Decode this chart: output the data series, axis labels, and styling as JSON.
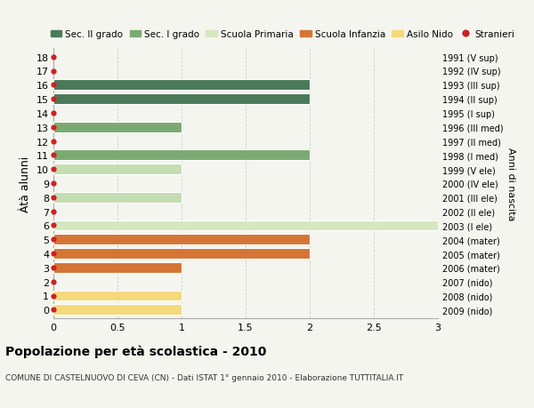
{
  "ages": [
    0,
    1,
    2,
    3,
    4,
    5,
    6,
    7,
    8,
    9,
    10,
    11,
    12,
    13,
    14,
    15,
    16,
    17,
    18
  ],
  "right_labels": [
    "2009 (nido)",
    "2008 (nido)",
    "2007 (nido)",
    "2006 (mater)",
    "2005 (mater)",
    "2004 (mater)",
    "2003 (I ele)",
    "2002 (II ele)",
    "2001 (III ele)",
    "2000 (IV ele)",
    "1999 (V ele)",
    "1998 (I med)",
    "1997 (II med)",
    "1996 (III med)",
    "1995 (I sup)",
    "1994 (II sup)",
    "1993 (III sup)",
    "1992 (IV sup)",
    "1991 (V sup)"
  ],
  "bars": [
    {
      "age": 16,
      "value": 2.0,
      "color": "#4a7a58"
    },
    {
      "age": 15,
      "value": 2.0,
      "color": "#4a7a58"
    },
    {
      "age": 13,
      "value": 1.0,
      "color": "#7aaa72"
    },
    {
      "age": 11,
      "value": 2.0,
      "color": "#7aaa72"
    },
    {
      "age": 10,
      "value": 1.0,
      "color": "#c5ddb2"
    },
    {
      "age": 8,
      "value": 1.0,
      "color": "#c5ddb2"
    },
    {
      "age": 6,
      "value": 3.0,
      "color": "#d5e8c0"
    },
    {
      "age": 5,
      "value": 2.0,
      "color": "#d47535"
    },
    {
      "age": 4,
      "value": 2.0,
      "color": "#d47535"
    },
    {
      "age": 3,
      "value": 1.0,
      "color": "#d47535"
    },
    {
      "age": 1,
      "value": 1.0,
      "color": "#f5d97a"
    },
    {
      "age": 0,
      "value": 1.0,
      "color": "#f5d97a"
    }
  ],
  "dot_color": "#cc2222",
  "xlim": [
    0,
    3.0
  ],
  "xticks": [
    0,
    0.5,
    1.0,
    1.5,
    2.0,
    2.5,
    3.0
  ],
  "ylabel_left": "Àtà alunni",
  "ylabel_right": "Anni di nascita",
  "title": "Popolazione per età scolastica - 2010",
  "subtitle": "COMUNE DI CASTELNUOVO DI CEVA (CN) - Dati ISTAT 1° gennaio 2010 - Elaborazione TUTTITALIA.IT",
  "legend": [
    {
      "label": "Sec. II grado",
      "color": "#4a7a58",
      "type": "patch"
    },
    {
      "label": "Sec. I grado",
      "color": "#7aaa72",
      "type": "patch"
    },
    {
      "label": "Scuola Primaria",
      "color": "#d5e8c0",
      "type": "patch"
    },
    {
      "label": "Scuola Infanzia",
      "color": "#d47535",
      "type": "patch"
    },
    {
      "label": "Asilo Nido",
      "color": "#f5d97a",
      "type": "patch"
    },
    {
      "label": "Stranieri",
      "color": "#cc2222",
      "type": "dot"
    }
  ],
  "bg_color": "#f5f5f0",
  "bar_height": 0.75
}
